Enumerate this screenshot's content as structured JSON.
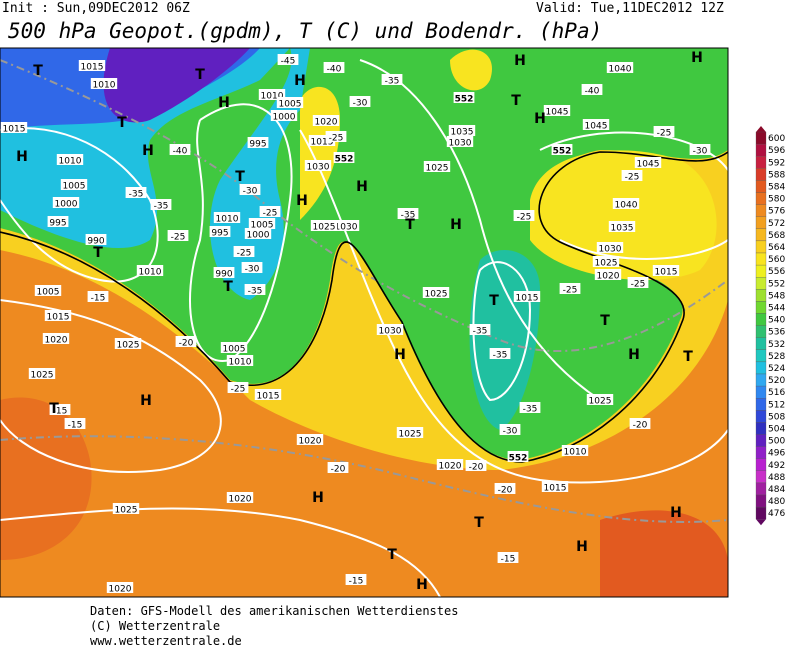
{
  "header": {
    "init": "Init : Sun,09DEC2012 06Z",
    "valid": "Valid: Tue,11DEC2012 12Z",
    "title": "500 hPa Geopot.(gpdm), T (C) und Bodendr. (hPa)"
  },
  "map": {
    "pressure_labels": [
      "1015",
      "1010",
      "1015",
      "1010",
      "1005",
      "1000",
      "995",
      "990",
      "1010",
      "1005",
      "1015",
      "1020",
      "1025",
      "1025",
      "1005",
      "1010",
      "1015",
      "1020",
      "1025",
      "1020",
      "1020",
      "1025",
      "1020",
      "1015",
      "1010",
      "1025",
      "1030",
      "1030",
      "1025",
      "1030",
      "1020",
      "1015",
      "1010",
      "1005",
      "1000",
      "995",
      "990",
      "995",
      "1000",
      "1005",
      "1010",
      "1035",
      "1030",
      "1025",
      "1040",
      "1045",
      "1045",
      "1045",
      "1040",
      "1035",
      "1030",
      "1025",
      "1020",
      "1015",
      "1015",
      "1025"
    ],
    "temperature_labels": [
      "-45",
      "-40",
      "-40",
      "-35",
      "-35",
      "-25",
      "-30",
      "-25",
      "-25",
      "-30",
      "-35",
      "-35",
      "-30",
      "-25",
      "-35",
      "-25",
      "-35",
      "-35",
      "-35",
      "-30",
      "-20",
      "-25",
      "-25",
      "-25",
      "-25",
      "-30",
      "-40",
      "-15",
      "-20",
      "-25",
      "-15",
      "-15",
      "-20",
      "-20",
      "-20",
      "-15",
      "-15"
    ],
    "contour_552_labels": [
      "552",
      "552",
      "552",
      "552"
    ],
    "highs_lows": [
      "T",
      "T",
      "H",
      "H",
      "T",
      "H",
      "H",
      "T",
      "H",
      "H",
      "T",
      "T",
      "T",
      "H",
      "T",
      "H",
      "T",
      "H",
      "T",
      "H",
      "T",
      "H",
      "T",
      "T",
      "H",
      "H",
      "T",
      "H",
      "H",
      "H",
      "H"
    ]
  },
  "colorbar": {
    "ticks": [
      600,
      596,
      592,
      588,
      584,
      580,
      576,
      572,
      568,
      564,
      560,
      556,
      552,
      548,
      544,
      540,
      536,
      532,
      528,
      524,
      520,
      516,
      512,
      508,
      504,
      500,
      496,
      492,
      488,
      484,
      480,
      476
    ],
    "colors": [
      "#8b0a2a",
      "#b01040",
      "#c82040",
      "#d93c28",
      "#e25a20",
      "#e87020",
      "#ee8a20",
      "#f2a020",
      "#f6b820",
      "#f8d020",
      "#f8e420",
      "#eef020",
      "#c8ec30",
      "#9ee030",
      "#70d830",
      "#40c840",
      "#30c070",
      "#20c0a0",
      "#20c8c0",
      "#20c0e0",
      "#30a8f0",
      "#3088f0",
      "#3068e8",
      "#3048d8",
      "#3030c0",
      "#6020c0",
      "#9020c8",
      "#b820d0",
      "#c830c8",
      "#a020a0",
      "#801080",
      "#600860"
    ]
  },
  "footer": {
    "line1": "Daten: GFS-Modell des amerikanischen Wetterdienstes",
    "line2": "(C) Wetterzentrale",
    "line3": "www.wetterzentrale.de"
  }
}
